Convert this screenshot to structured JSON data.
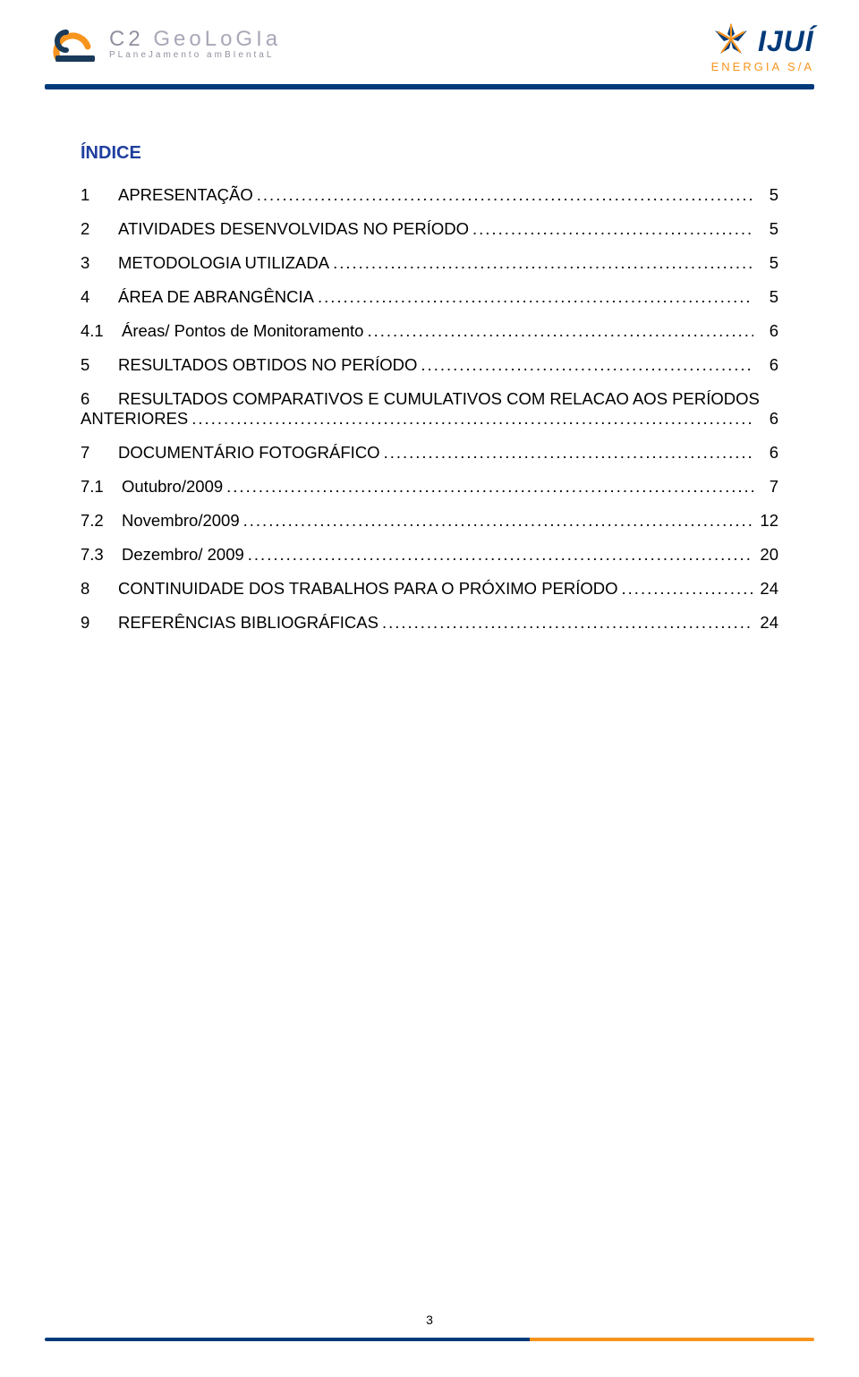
{
  "header": {
    "left_logo": {
      "title_a": "C2",
      "title_b": "GeoLoGIa",
      "subtitle": "PLaneJamento amBIentaL",
      "colors": {
        "arc": "#f7941e",
        "c_dark": "#1a3a5a",
        "c_light": "#a8a8b8"
      }
    },
    "right_logo": {
      "title": "IJUÍ",
      "subtitle": "ENERGIA S/A",
      "colors": {
        "star": "#003a7a",
        "bars": "#f7941e",
        "text": "#003a7a",
        "sub": "#f7941e"
      }
    },
    "divider_color": "#003a7a"
  },
  "indice": {
    "title": "ÍNDICE",
    "title_color": "#1f3e9e",
    "font_size": 18.5,
    "items": [
      {
        "num": "1",
        "label": "APRESENTAÇÃO",
        "page": "5",
        "indent": 0
      },
      {
        "num": "2",
        "label": "ATIVIDADES DESENVOLVIDAS NO PERÍODO",
        "page": "5",
        "indent": 0
      },
      {
        "num": "3",
        "label": "METODOLOGIA UTILIZADA",
        "page": "5",
        "indent": 0
      },
      {
        "num": "4",
        "label": "ÁREA DE ABRANGÊNCIA",
        "page": "5",
        "indent": 0
      },
      {
        "num": "4.1",
        "label": "Áreas/ Pontos de Monitoramento",
        "page": "6",
        "indent": 1
      },
      {
        "num": "5",
        "label": "RESULTADOS OBTIDOS NO PERÍODO",
        "page": "6",
        "indent": 0
      },
      {
        "num": "6",
        "label_l1": "RESULTADOS COMPARATIVOS E CUMULATIVOS COM RELACAO AOS PERÍODOS",
        "label_l2": "ANTERIORES",
        "page": "6",
        "indent": 0,
        "multiline": true
      },
      {
        "num": "7",
        "label": "DOCUMENTÁRIO FOTOGRÁFICO",
        "page": "6",
        "indent": 0
      },
      {
        "num": "7.1",
        "label": "Outubro/2009",
        "page": "7",
        "indent": 1
      },
      {
        "num": "7.2",
        "label": "Novembro/2009",
        "page": "12",
        "indent": 1
      },
      {
        "num": "7.3",
        "label": "Dezembro/ 2009",
        "page": "20",
        "indent": 1
      },
      {
        "num": "8",
        "label": "CONTINUIDADE DOS TRABALHOS PARA O PRÓXIMO PERÍODO",
        "page": "24",
        "indent": 0
      },
      {
        "num": "9",
        "label": "REFERÊNCIAS BIBLIOGRÁFICAS",
        "page": "24",
        "indent": 0
      }
    ]
  },
  "page_number": "3",
  "footer": {
    "color1": "#003a7a",
    "color2": "#f7941e"
  }
}
